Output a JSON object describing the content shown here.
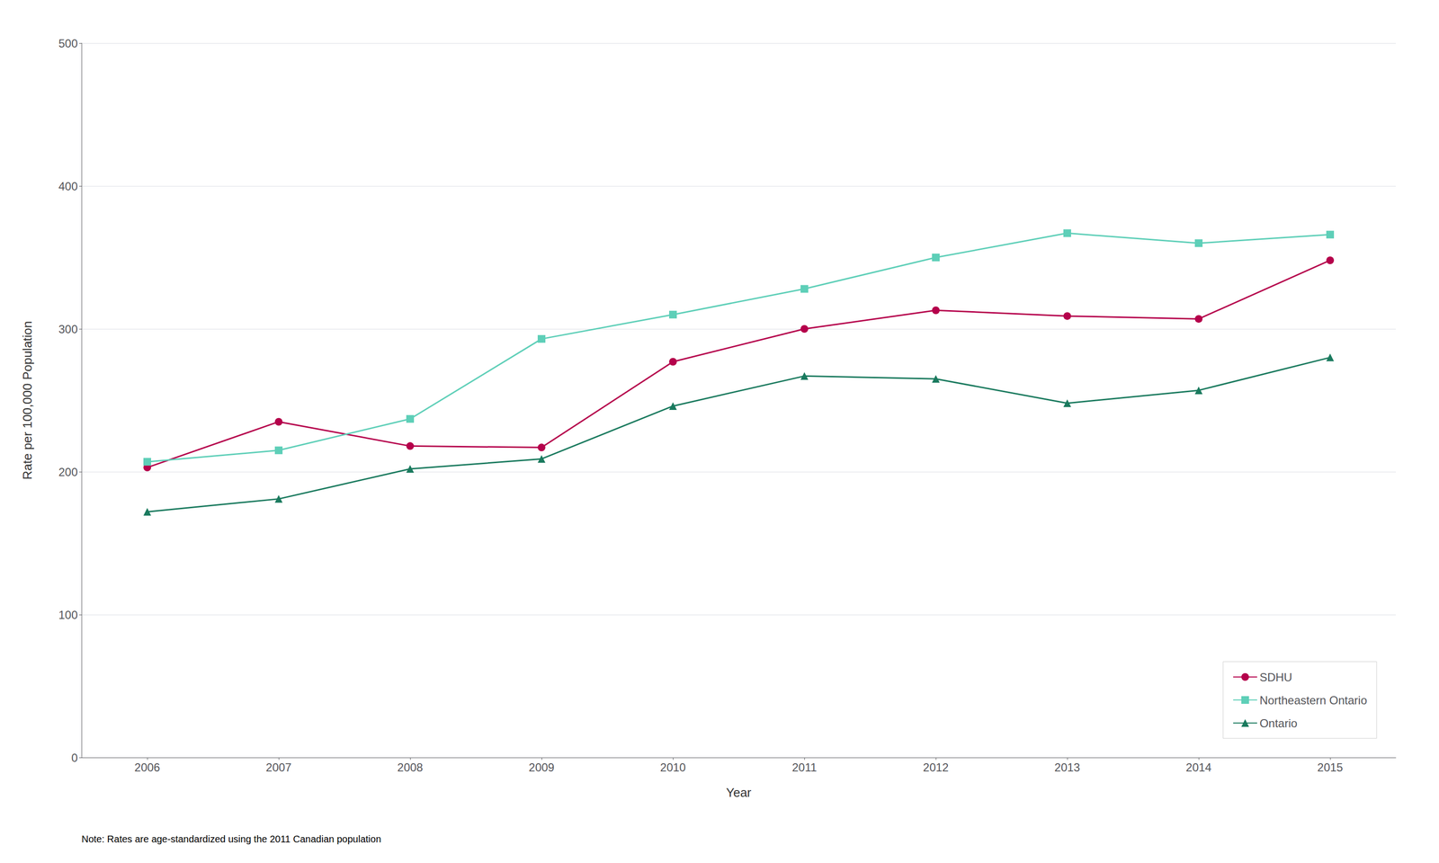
{
  "chart_data": {
    "type": "line",
    "x": [
      2006,
      2007,
      2008,
      2009,
      2010,
      2011,
      2012,
      2013,
      2014,
      2015
    ],
    "series": [
      {
        "name": "SDHU",
        "color": "#b5004b",
        "marker": "circle",
        "values": [
          203,
          235,
          218,
          217,
          277,
          300,
          313,
          309,
          307,
          348
        ]
      },
      {
        "name": "Northeastern Ontario",
        "color": "#5ecfb8",
        "marker": "square",
        "values": [
          207,
          215,
          237,
          293,
          310,
          328,
          350,
          367,
          360,
          366
        ]
      },
      {
        "name": "Ontario",
        "color": "#1a7a5e",
        "marker": "triangle",
        "values": [
          172,
          181,
          202,
          209,
          246,
          267,
          265,
          248,
          257,
          280
        ]
      }
    ],
    "xlabel": "Year",
    "ylabel": "Rate per 100,000 Population",
    "xlim": [
      2005.5,
      2015.5
    ],
    "xticks": [
      2006,
      2007,
      2008,
      2009,
      2010,
      2011,
      2012,
      2013,
      2014,
      2015
    ],
    "ylim": [
      0,
      500
    ],
    "yticks": [
      0,
      100,
      200,
      300,
      400,
      500
    ],
    "grid": true,
    "legend": "lower right",
    "annotation": "Note: Rates are age-standardized using the 2011 Canadian population"
  }
}
